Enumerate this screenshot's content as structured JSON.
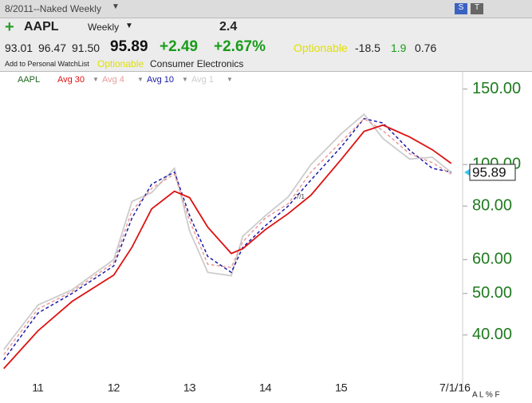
{
  "header": {
    "title": "8/2011--Naked Weekly",
    "symbol": "AAPL",
    "period": "Weekly",
    "score": "2.4",
    "open": "93.01",
    "high": "96.47",
    "low": "91.50",
    "last": "95.89",
    "change": "+2.49",
    "change_pct": "+2.67%",
    "optionable": "Optionable",
    "stat1": "-18.5",
    "stat2": "1.9",
    "stat3": "0.76",
    "watchlist": "Add to Personal WatchList",
    "optionable2": "Optionable",
    "industry": "Consumer Electronics",
    "footer": "A L % F"
  },
  "chart_data": {
    "type": "line",
    "symbol": "AAPL",
    "log_scale": true,
    "x": [
      2010.55,
      2011.0,
      2011.45,
      2012.0,
      2012.24,
      2012.5,
      2012.8,
      2013.0,
      2013.24,
      2013.55,
      2013.7,
      2014.0,
      2014.3,
      2014.6,
      2015.0,
      2015.3,
      2015.55,
      2015.9,
      2016.2,
      2016.45
    ],
    "series": [
      {
        "name": "Avg 30",
        "color": "#dd1111",
        "dash": false,
        "values": [
          33.4,
          40.9,
          47.9,
          55.2,
          64.1,
          78.8,
          86.6,
          83.7,
          71.4,
          62.0,
          63.6,
          70.5,
          76.8,
          84.8,
          102.8,
          119.5,
          123.6,
          116.0,
          108.3,
          100.6
        ]
      },
      {
        "name": "Avg 4",
        "color": "#e89a9a",
        "dash": true,
        "values": [
          36.0,
          46.0,
          50.5,
          59.0,
          78.0,
          88.0,
          95.0,
          74.0,
          58.5,
          57.5,
          66.0,
          75.0,
          81.0,
          96.0,
          113.0,
          128.0,
          120.0,
          106.0,
          101.0,
          95.0
        ]
      },
      {
        "name": "Avg 10",
        "color": "#1a1aaa",
        "dash": true,
        "values": [
          35.0,
          45.0,
          50.0,
          58.0,
          75.0,
          90.0,
          96.0,
          76.0,
          61.0,
          56.0,
          64.0,
          72.0,
          80.0,
          92.0,
          110.0,
          128.0,
          125.0,
          108.0,
          98.0,
          96.0
        ]
      },
      {
        "name": "Avg 1",
        "color": "#cccccc",
        "dash": false,
        "values": [
          37.0,
          47.0,
          51.0,
          60.0,
          82.0,
          86.0,
          98.0,
          70.0,
          56.0,
          55.0,
          68.0,
          76.0,
          84.0,
          100.0,
          118.0,
          131.0,
          115.0,
          103.0,
          104.0,
          95.89
        ]
      }
    ],
    "xlim": [
      2010.5,
      2016.6
    ],
    "ylim": [
      29.6,
      166
    ],
    "yticks": [
      {
        "value": 40,
        "label": "40.00"
      },
      {
        "value": 50,
        "label": "50.00"
      },
      {
        "value": 60,
        "label": "60.00"
      },
      {
        "value": 80,
        "label": "80.00"
      },
      {
        "value": 100,
        "label": "100.00"
      },
      {
        "value": 150,
        "label": "150.00"
      }
    ],
    "xticks": [
      {
        "value": 2011,
        "label": "11"
      },
      {
        "value": 2012,
        "label": "12"
      },
      {
        "value": 2013,
        "label": "13"
      },
      {
        "value": 2014,
        "label": "14"
      },
      {
        "value": 2015,
        "label": "15"
      },
      {
        "value": 2016.5,
        "label": "7/1/16"
      }
    ],
    "last_price": 95.89,
    "annotation": {
      "text": "7/1",
      "x": 2014.4,
      "y": 84
    }
  }
}
